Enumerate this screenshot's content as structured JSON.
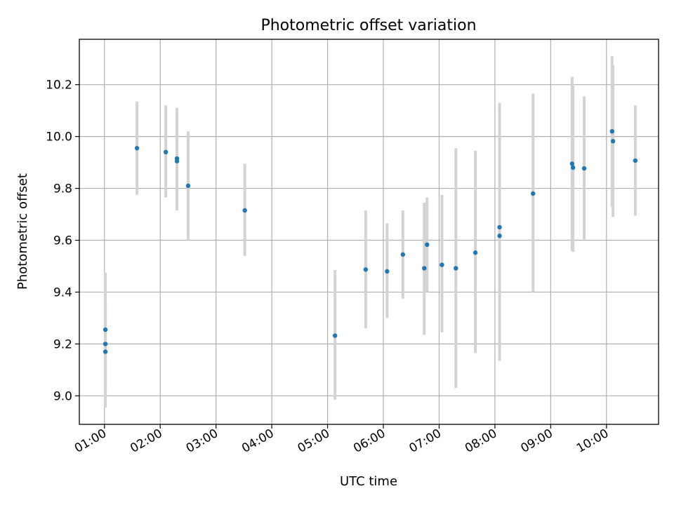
{
  "chart_data": {
    "type": "scatter",
    "title": "Photometric offset variation",
    "xlabel": "UTC time",
    "ylabel": "Photometric offset",
    "xlim": [
      "00:33",
      "10:56"
    ],
    "ylim": [
      8.89,
      10.375
    ],
    "grid": true,
    "x_ticks": [
      "01:00",
      "02:00",
      "03:00",
      "04:00",
      "05:00",
      "06:00",
      "07:00",
      "08:00",
      "09:00",
      "10:00"
    ],
    "y_ticks": [
      9.0,
      9.2,
      9.4,
      9.6,
      9.8,
      10.0,
      10.2
    ],
    "y_tick_labels": [
      "9.0",
      "9.2",
      "9.4",
      "9.6",
      "9.8",
      "10.0",
      "10.2"
    ],
    "points": [
      {
        "x": "01:01",
        "y": 9.255,
        "lo": 9.03,
        "hi": 9.475
      },
      {
        "x": "01:01",
        "y": 9.2,
        "lo": 9.0,
        "hi": 9.35
      },
      {
        "x": "01:01",
        "y": 9.17,
        "lo": 8.955,
        "hi": 9.29
      },
      {
        "x": "01:35",
        "y": 9.955,
        "lo": 9.775,
        "hi": 10.135
      },
      {
        "x": "02:06",
        "y": 9.94,
        "lo": 9.765,
        "hi": 10.12
      },
      {
        "x": "02:18",
        "y": 9.915,
        "lo": 9.715,
        "hi": 10.11
      },
      {
        "x": "02:18",
        "y": 9.905,
        "lo": 9.73,
        "hi": 10.08
      },
      {
        "x": "02:30",
        "y": 9.81,
        "lo": 9.6,
        "hi": 10.02
      },
      {
        "x": "03:31",
        "y": 9.715,
        "lo": 9.54,
        "hi": 9.895
      },
      {
        "x": "05:08",
        "y": 9.232,
        "lo": 8.985,
        "hi": 9.485
      },
      {
        "x": "05:41",
        "y": 9.487,
        "lo": 9.26,
        "hi": 9.715
      },
      {
        "x": "06:04",
        "y": 9.48,
        "lo": 9.3,
        "hi": 9.665
      },
      {
        "x": "06:21",
        "y": 9.545,
        "lo": 9.375,
        "hi": 9.715
      },
      {
        "x": "06:44",
        "y": 9.492,
        "lo": 9.235,
        "hi": 9.745
      },
      {
        "x": "06:47",
        "y": 9.583,
        "lo": 9.4,
        "hi": 9.765
      },
      {
        "x": "07:03",
        "y": 9.505,
        "lo": 9.245,
        "hi": 9.775
      },
      {
        "x": "07:18",
        "y": 9.492,
        "lo": 9.03,
        "hi": 9.955
      },
      {
        "x": "07:39",
        "y": 9.552,
        "lo": 9.165,
        "hi": 9.945
      },
      {
        "x": "08:05",
        "y": 9.65,
        "lo": 9.16,
        "hi": 10.13
      },
      {
        "x": "08:05",
        "y": 9.617,
        "lo": 9.135,
        "hi": 10.1
      },
      {
        "x": "08:41",
        "y": 9.78,
        "lo": 9.4,
        "hi": 10.165
      },
      {
        "x": "09:23",
        "y": 9.895,
        "lo": 9.56,
        "hi": 10.23
      },
      {
        "x": "09:24",
        "y": 9.88,
        "lo": 9.555,
        "hi": 10.195
      },
      {
        "x": "09:36",
        "y": 9.877,
        "lo": 9.6,
        "hi": 10.155
      },
      {
        "x": "10:06",
        "y": 10.02,
        "lo": 9.73,
        "hi": 10.31
      },
      {
        "x": "10:07",
        "y": 9.982,
        "lo": 9.69,
        "hi": 10.275
      },
      {
        "x": "10:31",
        "y": 9.907,
        "lo": 9.695,
        "hi": 10.12
      }
    ],
    "colors": {
      "point": "#1f77b4",
      "errorbar": "#d3d3d3",
      "grid": "#b0b0b0"
    }
  }
}
